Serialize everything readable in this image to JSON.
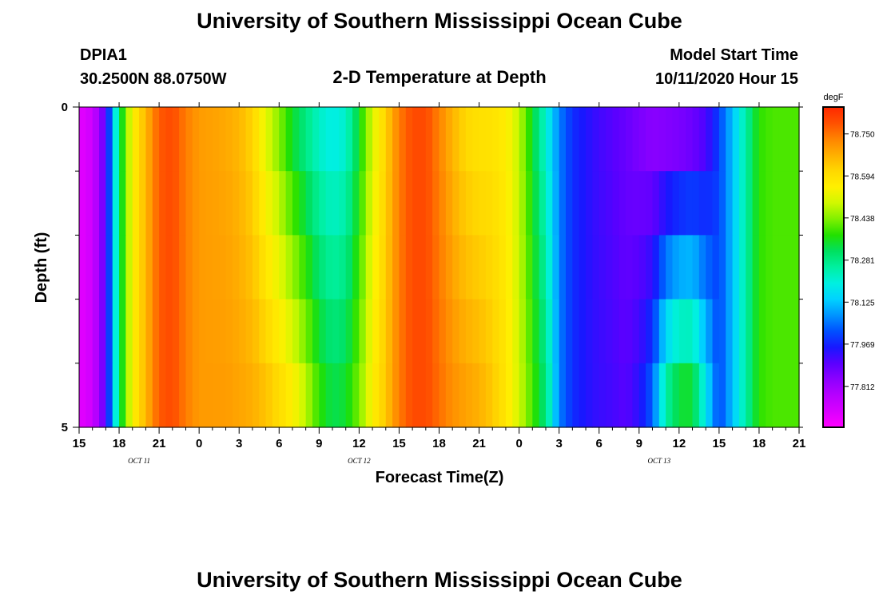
{
  "page": {
    "title": "University of Southern Mississippi Ocean Cube",
    "footer_title": "University of Southern Mississippi Ocean Cube",
    "station_id": "DPIA1",
    "station_coords": "30.2500N 88.0750W",
    "chart_title": "2-D Temperature at Depth",
    "model_start_label": "Model Start Time",
    "model_start_value": "10/11/2020 Hour 15"
  },
  "chart_data": {
    "type": "heatmap",
    "title": "2-D Temperature at Depth",
    "xlabel": "Forecast Time(Z)",
    "ylabel": "Depth (ft)",
    "x_range": [
      0,
      54
    ],
    "y_range": [
      0,
      5
    ],
    "x_ticks": [
      "15",
      "18",
      "21",
      "0",
      "3",
      "6",
      "9",
      "12",
      "15",
      "18",
      "21",
      "0",
      "3",
      "6",
      "9",
      "12",
      "15",
      "18",
      "21"
    ],
    "y_ticks": [
      "0",
      "5"
    ],
    "date_labels": [
      {
        "text": "OCT 11",
        "hour": 4.5
      },
      {
        "text": "OCT 12",
        "hour": 21
      },
      {
        "text": "OCT 13",
        "hour": 43.5
      }
    ],
    "depth_layers": [
      0,
      1,
      2,
      3,
      4,
      5
    ],
    "colorbar": {
      "unit": "degF",
      "min": 77.66,
      "max": 78.85,
      "ticks": [
        "78.750",
        "78.594",
        "78.438",
        "78.281",
        "78.125",
        "77.969",
        "77.812"
      ],
      "tick_values": [
        78.75,
        78.594,
        78.438,
        78.281,
        78.125,
        77.969,
        77.812
      ],
      "colors": [
        "#ff00ff",
        "#d900ff",
        "#b700ff",
        "#8d00ff",
        "#5a00ff",
        "#1818ff",
        "#0050ff",
        "#0094ff",
        "#00d2ff",
        "#00f0e0",
        "#00f0a0",
        "#00e060",
        "#22e000",
        "#80f000",
        "#d0f800",
        "#fff000",
        "#ffd800",
        "#ffb000",
        "#ff8400",
        "#ff5000",
        "#ff2800"
      ]
    },
    "time_anchors": {
      "hours": [
        0,
        1,
        2,
        3,
        4,
        5,
        6,
        7,
        8,
        9,
        10,
        11,
        12,
        13,
        14,
        15,
        16,
        17,
        18,
        19,
        20,
        21,
        22,
        23,
        24,
        25,
        26,
        27,
        28,
        29,
        30,
        31,
        32,
        33,
        34,
        35,
        36,
        37,
        38,
        39,
        40,
        41,
        42,
        43,
        44,
        45,
        46,
        47,
        48,
        49,
        50,
        51,
        52,
        53,
        54
      ],
      "surface": [
        77.7,
        77.74,
        77.9,
        78.3,
        78.55,
        78.66,
        78.78,
        78.8,
        78.74,
        78.7,
        78.69,
        78.68,
        78.66,
        78.61,
        78.5,
        78.42,
        78.32,
        78.26,
        78.2,
        78.17,
        78.2,
        78.34,
        78.5,
        78.62,
        78.74,
        78.8,
        78.8,
        78.73,
        78.66,
        78.6,
        78.58,
        78.58,
        78.56,
        78.48,
        78.34,
        78.2,
        78.06,
        77.98,
        77.95,
        77.92,
        77.9,
        77.88,
        77.85,
        77.82,
        77.8,
        77.8,
        77.82,
        77.88,
        78.0,
        78.12,
        78.25,
        78.38,
        78.4,
        78.4,
        78.4
      ],
      "bottom": [
        77.7,
        77.74,
        77.9,
        78.3,
        78.55,
        78.66,
        78.78,
        78.8,
        78.74,
        78.7,
        78.7,
        78.7,
        78.69,
        78.68,
        78.66,
        78.62,
        78.58,
        78.5,
        78.4,
        78.34,
        78.36,
        78.44,
        78.56,
        78.64,
        78.74,
        78.8,
        78.8,
        78.76,
        78.72,
        78.7,
        78.68,
        78.64,
        78.58,
        78.5,
        78.4,
        78.3,
        78.06,
        77.98,
        77.95,
        77.93,
        77.92,
        77.9,
        77.95,
        78.05,
        78.3,
        78.4,
        78.4,
        78.2,
        78.0,
        78.12,
        78.25,
        78.38,
        78.4,
        78.4,
        78.4
      ]
    }
  }
}
